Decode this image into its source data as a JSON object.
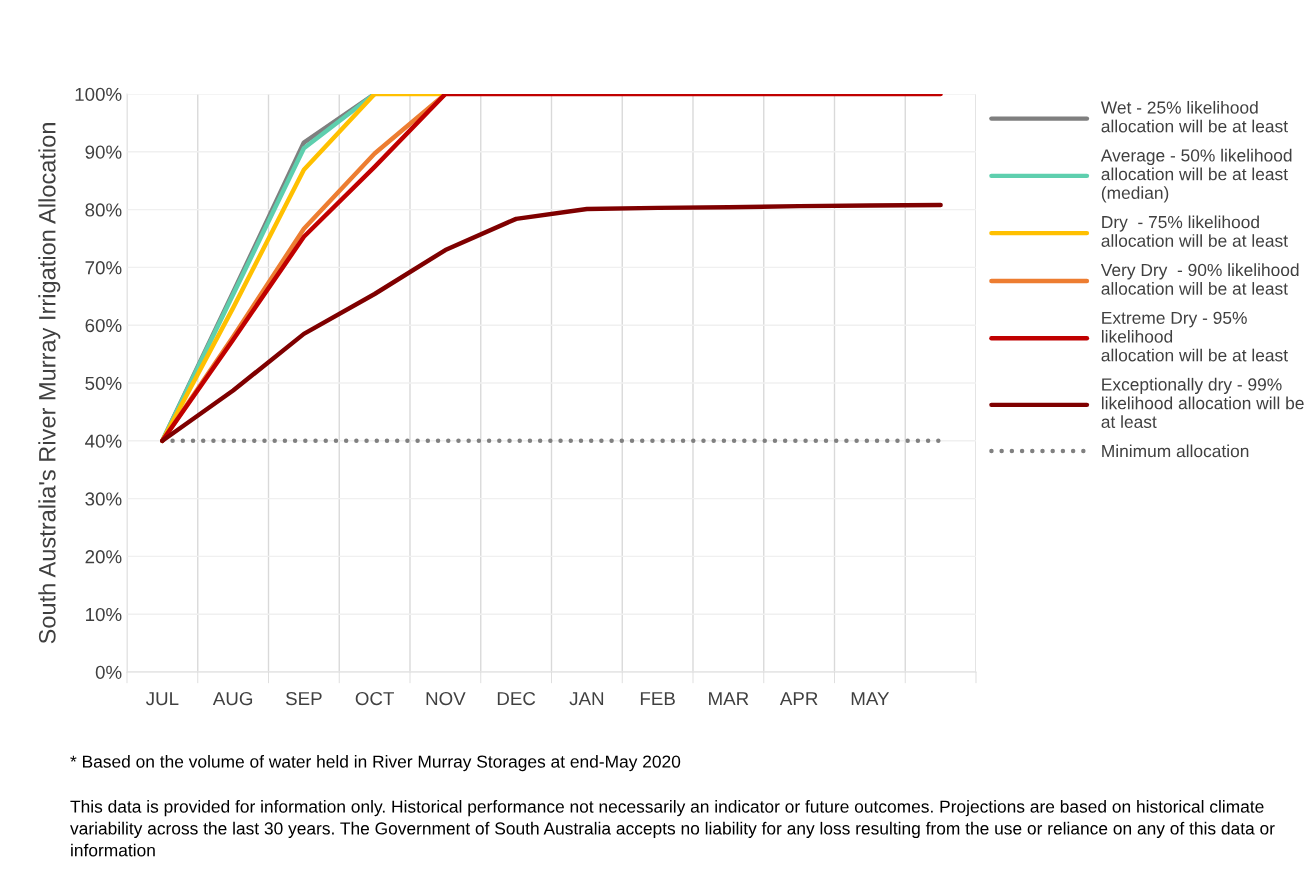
{
  "chart_data": {
    "type": "line",
    "ylabel": "South Australia's River Murray Irrigation Allocation",
    "categories": [
      "JUL",
      "AUG",
      "SEP",
      "OCT",
      "NOV",
      "DEC",
      "JAN",
      "FEB",
      "MAR",
      "APR",
      "MAY",
      null
    ],
    "ylim": [
      0,
      100
    ],
    "yticks": [
      {
        "value": 0,
        "label": "0%"
      },
      {
        "value": 10,
        "label": "10%"
      },
      {
        "value": 20,
        "label": "20%"
      },
      {
        "value": 30,
        "label": "30%"
      },
      {
        "value": 40,
        "label": "40%"
      },
      {
        "value": 50,
        "label": "50%"
      },
      {
        "value": 60,
        "label": "60%"
      },
      {
        "value": 70,
        "label": "70%"
      },
      {
        "value": 80,
        "label": "80%"
      },
      {
        "value": 90,
        "label": "90%"
      },
      {
        "value": 100,
        "label": "100%"
      }
    ],
    "grid": true,
    "legend": "right",
    "marker": "none",
    "series": [
      {
        "name": "Wet - 25% likelihood\nallocation will be at least",
        "color": "#7f7f7f",
        "values": [
          40,
          65.7,
          91.6,
          100,
          null,
          null,
          null,
          null,
          null,
          null,
          null,
          null
        ]
      },
      {
        "name": "Average - 50% likelihood\nallocation will be at least\n(median)",
        "color": "#5ecfae",
        "values": [
          40,
          65.3,
          90.6,
          100,
          null,
          null,
          null,
          null,
          null,
          null,
          null,
          null
        ]
      },
      {
        "name": "Dry  - 75% likelihood\nallocation will be at least",
        "color": "#ffc000",
        "values": [
          40,
          63,
          86.9,
          100,
          100,
          null,
          null,
          null,
          null,
          null,
          null,
          null
        ]
      },
      {
        "name": "Very Dry  - 90% likelihood\nallocation will be at least",
        "color": "#ed7d31",
        "values": [
          40,
          58,
          76.7,
          89.7,
          100,
          null,
          null,
          null,
          null,
          null,
          null,
          null
        ]
      },
      {
        "name": "Extreme Dry - 95%\nlikelihood\nallocation will be at least",
        "color": "#c00000",
        "values": [
          40,
          57.5,
          75.3,
          87.4,
          100,
          100,
          100,
          100,
          100,
          100,
          100,
          100
        ]
      },
      {
        "name": "Exceptionally dry - 99%\nlikelihood allocation will be\nat least",
        "color": "#7f0000",
        "values": [
          40,
          48.7,
          58.5,
          65.4,
          73,
          78.4,
          80.1,
          80.3,
          80.4,
          80.6,
          80.7,
          80.8
        ]
      },
      {
        "name": "Minimum allocation",
        "color": "#808080",
        "line_style": "dotted",
        "values": [
          40,
          40,
          40,
          40,
          40,
          40,
          40,
          40,
          40,
          40,
          40,
          40
        ]
      }
    ],
    "annotations": [
      "* Based on the volume of water held in River Murray Storages at end-May 2020",
      "This data is provided for information only. Historical performance not necessarily an indicator or future outcomes. Projections are based on historical climate variability across the last 30 years. The Government of South Australia accepts no liability for any loss resulting from the use or reliance on any of this data or information"
    ]
  }
}
